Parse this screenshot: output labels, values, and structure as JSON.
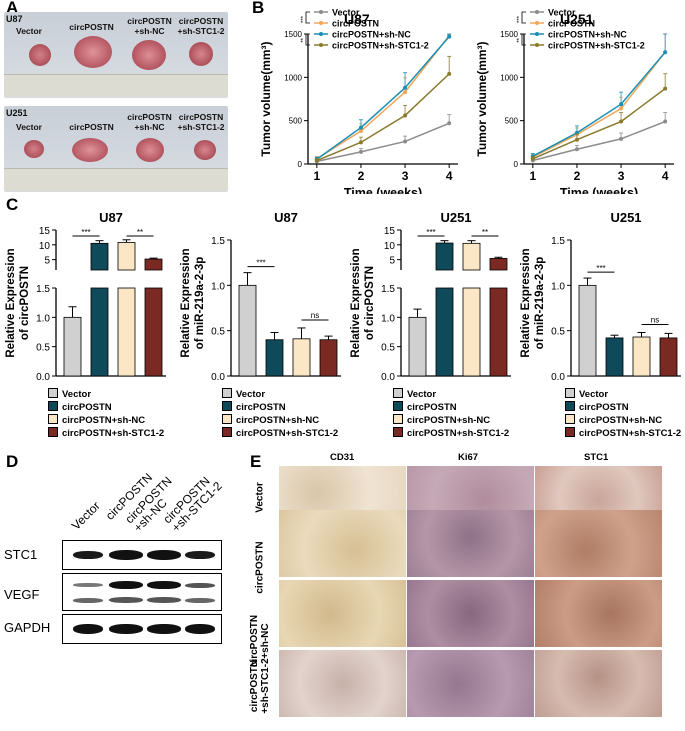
{
  "panels": {
    "A": "A",
    "B": "B",
    "C": "C",
    "D": "D",
    "E": "E"
  },
  "panel_a": {
    "u87_label": "U87",
    "u251_label": "U251",
    "groups": [
      "Vector",
      "circPOSTN",
      "circPOSTN\n+sh-NC",
      "circPOSTN\n+sh-STC1-2"
    ]
  },
  "legend_groups": [
    "Vector",
    "circPOSTN",
    "circPOSTN+sh-NC",
    "circPOSTN+sh-STC1-2"
  ],
  "colors": {
    "vector_line": "#8c8c8c",
    "circ_line": "#f2a65a",
    "shnc_line": "#1a8fb5",
    "shstc_line": "#8a7a2e",
    "vector_bar": "#d0d0d0",
    "circ_bar": "#0f4a5a",
    "shnc_bar": "#fbe7c6",
    "shstc_bar": "#7a2a22"
  },
  "chart_data": [
    {
      "type": "line",
      "title": "U87",
      "xlabel": "Time (weeks)",
      "ylabel": "Tumor volume(mm³)",
      "x": [
        1,
        2,
        3,
        4
      ],
      "ylim": [
        0,
        1500
      ],
      "yticks": [
        0,
        500,
        1000,
        1500
      ],
      "series": [
        {
          "name": "Vector",
          "values": [
            30,
            140,
            260,
            470
          ]
        },
        {
          "name": "circPOSTN",
          "values": [
            60,
            380,
            830,
            1480
          ]
        },
        {
          "name": "circPOSTN+sh-NC",
          "values": [
            55,
            420,
            880,
            1470
          ]
        },
        {
          "name": "circPOSTN+sh-STC1-2",
          "values": [
            40,
            250,
            560,
            1040
          ]
        }
      ],
      "sig": [
        "***",
        "**"
      ]
    },
    {
      "type": "line",
      "title": "U251",
      "xlabel": "Time (weeks)",
      "ylabel": "Tumor volume(mm³)",
      "x": [
        1,
        2,
        3,
        4
      ],
      "ylim": [
        0,
        1500
      ],
      "yticks": [
        0,
        500,
        1000,
        1500
      ],
      "series": [
        {
          "name": "Vector",
          "values": [
            40,
            170,
            290,
            490
          ]
        },
        {
          "name": "circPOSTN",
          "values": [
            80,
            340,
            640,
            1290
          ]
        },
        {
          "name": "circPOSTN+sh-NC",
          "values": [
            90,
            360,
            690,
            1290
          ]
        },
        {
          "name": "circPOSTN+sh-STC1-2",
          "values": [
            60,
            280,
            490,
            870
          ]
        }
      ],
      "sig": [
        "***",
        "**"
      ]
    },
    {
      "type": "bar",
      "title": "U87",
      "ylabel": [
        "Relative Expression",
        "of circPOSTN"
      ],
      "categories": [
        "Vector",
        "circPOSTN",
        "circPOSTN+sh-NC",
        "circPOSTN+sh-STC1-2"
      ],
      "values": [
        1.0,
        10.5,
        10.8,
        5.2
      ],
      "errors": [
        0.18,
        0.9,
        0.9,
        0.3
      ],
      "broken_axis": true,
      "yticks_low": [
        "0.0",
        "0.5",
        "1.0",
        "1.5"
      ],
      "yticks_high": [
        "5",
        "10",
        "15"
      ],
      "sig": [
        "***",
        "**"
      ]
    },
    {
      "type": "bar",
      "title": "U87",
      "ylabel": [
        "Relative Expression",
        "of miR-219a-2-3p"
      ],
      "categories": [
        "Vector",
        "circPOSTN",
        "circPOSTN+sh-NC",
        "circPOSTN+sh-STC1-2"
      ],
      "values": [
        1.0,
        0.4,
        0.41,
        0.4
      ],
      "errors": [
        0.14,
        0.08,
        0.12,
        0.04
      ],
      "ylim": [
        0,
        1.5
      ],
      "yticks": [
        "0.0",
        "0.5",
        "1.0",
        "1.5"
      ],
      "sig": [
        "***",
        "ns"
      ]
    },
    {
      "type": "bar",
      "title": "U251",
      "ylabel": [
        "Relative Expression",
        "of circPOSTN"
      ],
      "categories": [
        "Vector",
        "circPOSTN",
        "circPOSTN+sh-NC",
        "circPOSTN+sh-STC1-2"
      ],
      "values": [
        1.0,
        10.6,
        10.5,
        5.4
      ],
      "errors": [
        0.14,
        0.8,
        0.9,
        0.4
      ],
      "broken_axis": true,
      "yticks_low": [
        "0.0",
        "0.5",
        "1.0",
        "1.5"
      ],
      "yticks_high": [
        "5",
        "10",
        "15"
      ],
      "sig": [
        "***",
        "**"
      ]
    },
    {
      "type": "bar",
      "title": "U251",
      "ylabel": [
        "Relative Expression",
        "of miR-219a-2-3p"
      ],
      "categories": [
        "Vector",
        "circPOSTN",
        "circPOSTN+sh-NC",
        "circPOSTN+sh-STC1-2"
      ],
      "values": [
        1.0,
        0.42,
        0.43,
        0.42
      ],
      "errors": [
        0.08,
        0.03,
        0.05,
        0.05
      ],
      "ylim": [
        0,
        1.5
      ],
      "yticks": [
        "0.0",
        "0.5",
        "1.0",
        "1.5"
      ],
      "sig": [
        "***",
        "ns"
      ]
    }
  ],
  "panel_d": {
    "lanes": [
      "Vector",
      "circPOSTN",
      "circPOSTN\n+sh-NC",
      "circPOSTN\n+sh-STC1-2"
    ],
    "rows": [
      "STC1",
      "VEGF",
      "GAPDH"
    ]
  },
  "panel_e": {
    "columns": [
      "CD31",
      "Ki67",
      "STC1"
    ],
    "rows": [
      "Vector",
      "circPOSTN",
      "circPOSTN\n+sh-NC",
      "circPOSTN\n+sh-STC1-2"
    ]
  }
}
